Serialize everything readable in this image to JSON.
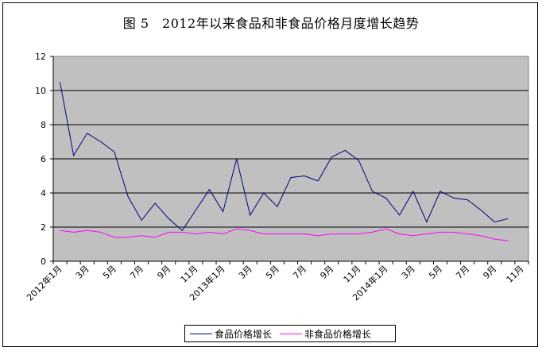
{
  "title": "图 5　2012年以来食品和非食品价格月度增长趋势",
  "legend": {
    "items": [
      {
        "label": "食品价格增长",
        "color": "#000080"
      },
      {
        "label": "非食品价格增长",
        "color": "#ff00ff"
      }
    ]
  },
  "chart_data": {
    "type": "line",
    "title": "图 5　2012年以来食品和非食品价格月度增长趋势",
    "xlabel": "",
    "ylabel": "",
    "ylim": [
      0,
      12
    ],
    "yticks": [
      0,
      2,
      4,
      6,
      8,
      10,
      12
    ],
    "grid": true,
    "legend_position": "bottom",
    "plot_background": "#c0c0c0",
    "x": [
      "2012年1月",
      "2012年2月",
      "2012年3月",
      "2012年4月",
      "2012年5月",
      "2012年6月",
      "2012年7月",
      "2012年8月",
      "2012年9月",
      "2012年10月",
      "2012年11月",
      "2012年12月",
      "2013年1月",
      "2013年2月",
      "2013年3月",
      "2013年4月",
      "2013年5月",
      "2013年6月",
      "2013年7月",
      "2013年8月",
      "2013年9月",
      "2013年10月",
      "2013年11月",
      "2013年12月",
      "2014年1月",
      "2014年2月",
      "2014年3月",
      "2014年4月",
      "2014年5月",
      "2014年6月",
      "2014年7月",
      "2014年8月",
      "2014年9月",
      "2014年10月",
      "2014年11月"
    ],
    "xtick_labels": [
      "2012年1月",
      "3月",
      "5月",
      "7月",
      "9月",
      "11月",
      "2013年1月",
      "3月",
      "5月",
      "7月",
      "9月",
      "11月",
      "2014年1月",
      "3月",
      "5月",
      "7月",
      "9月",
      "11月"
    ],
    "series": [
      {
        "name": "食品价格增长",
        "color": "#000080",
        "values": [
          10.5,
          6.2,
          7.5,
          7.0,
          6.4,
          3.8,
          2.4,
          3.4,
          2.5,
          1.8,
          3.0,
          4.2,
          2.9,
          6.0,
          2.7,
          4.0,
          3.2,
          4.9,
          5.0,
          4.7,
          6.1,
          6.5,
          5.9,
          4.1,
          3.7,
          2.7,
          4.1,
          2.3,
          4.1,
          3.7,
          3.6,
          3.0,
          2.3,
          2.5,
          null
        ]
      },
      {
        "name": "非食品价格增长",
        "color": "#ff00ff",
        "values": [
          1.8,
          1.7,
          1.8,
          1.7,
          1.4,
          1.4,
          1.5,
          1.4,
          1.7,
          1.7,
          1.6,
          1.7,
          1.6,
          1.9,
          1.8,
          1.6,
          1.6,
          1.6,
          1.6,
          1.5,
          1.6,
          1.6,
          1.6,
          1.7,
          1.9,
          1.6,
          1.5,
          1.6,
          1.7,
          1.7,
          1.6,
          1.5,
          1.3,
          1.2,
          null
        ]
      }
    ]
  }
}
